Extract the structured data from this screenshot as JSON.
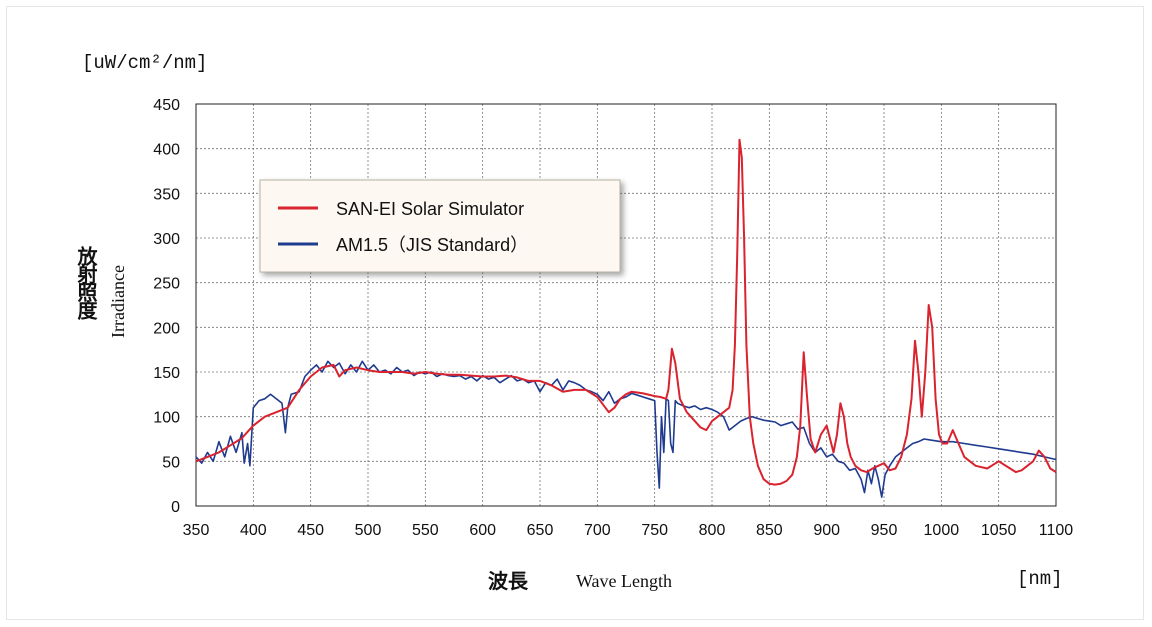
{
  "chart_data": {
    "type": "line",
    "y_unit_label": "[uW/cm²/nm]",
    "x_unit_label": "[nm]",
    "ylabel_jp": "放射照度",
    "ylabel_en": "Irradiance",
    "xlabel_jp": "波長",
    "xlabel_en": "Wave Length",
    "xlim": [
      350,
      1100
    ],
    "ylim": [
      0,
      450
    ],
    "x_ticks": [
      350,
      400,
      450,
      500,
      550,
      600,
      650,
      700,
      750,
      800,
      850,
      900,
      950,
      1000,
      1050,
      1100
    ],
    "y_ticks": [
      0,
      50,
      100,
      150,
      200,
      250,
      300,
      350,
      400,
      450
    ],
    "grid": true,
    "legend_position": "upper-left",
    "series": [
      {
        "name": "SAN-EI Solar Simulator",
        "color": "#d9232e",
        "x": [
          350,
          360,
          370,
          380,
          390,
          400,
          410,
          420,
          430,
          440,
          450,
          460,
          470,
          475,
          480,
          490,
          500,
          510,
          520,
          530,
          540,
          550,
          560,
          570,
          580,
          590,
          600,
          610,
          620,
          630,
          640,
          650,
          660,
          670,
          680,
          690,
          700,
          710,
          715,
          720,
          725,
          730,
          740,
          750,
          755,
          760,
          762,
          765,
          768,
          772,
          778,
          785,
          790,
          795,
          800,
          805,
          810,
          815,
          818,
          820,
          822,
          824,
          826,
          828,
          830,
          833,
          836,
          840,
          845,
          850,
          855,
          860,
          865,
          870,
          874,
          877,
          880,
          883,
          886,
          890,
          895,
          900,
          903,
          906,
          909,
          912,
          915,
          918,
          921,
          925,
          930,
          935,
          940,
          945,
          950,
          955,
          960,
          965,
          970,
          974,
          977,
          980,
          983,
          986,
          989,
          992,
          995,
          998,
          1001,
          1005,
          1010,
          1015,
          1020,
          1030,
          1040,
          1050,
          1055,
          1060,
          1065,
          1070,
          1080,
          1085,
          1090,
          1095,
          1100
        ],
        "values": [
          50,
          55,
          60,
          68,
          76,
          90,
          100,
          105,
          110,
          130,
          145,
          155,
          158,
          145,
          152,
          155,
          152,
          150,
          150,
          150,
          148,
          150,
          148,
          147,
          147,
          146,
          145,
          145,
          146,
          144,
          140,
          140,
          135,
          128,
          130,
          130,
          122,
          105,
          110,
          120,
          125,
          128,
          126,
          123,
          122,
          120,
          130,
          176,
          160,
          120,
          105,
          95,
          88,
          85,
          95,
          100,
          105,
          110,
          130,
          180,
          280,
          410,
          390,
          300,
          180,
          100,
          70,
          45,
          30,
          25,
          24,
          25,
          28,
          35,
          55,
          90,
          172,
          120,
          75,
          60,
          80,
          90,
          75,
          60,
          80,
          115,
          100,
          70,
          55,
          45,
          40,
          38,
          42,
          45,
          48,
          40,
          42,
          55,
          80,
          120,
          185,
          150,
          100,
          150,
          225,
          200,
          120,
          80,
          70,
          70,
          85,
          70,
          55,
          45,
          42,
          50,
          46,
          42,
          38,
          40,
          50,
          62,
          55,
          42,
          38
        ]
      },
      {
        "name": "AM1.5（JIS Standard）",
        "color": "#1f3b8f",
        "x": [
          350,
          355,
          360,
          365,
          370,
          375,
          380,
          385,
          390,
          392,
          395,
          397,
          400,
          405,
          410,
          415,
          420,
          425,
          428,
          430,
          433,
          440,
          445,
          450,
          455,
          460,
          465,
          470,
          475,
          480,
          485,
          490,
          495,
          500,
          505,
          510,
          515,
          520,
          525,
          530,
          535,
          540,
          545,
          550,
          555,
          560,
          565,
          570,
          575,
          580,
          585,
          590,
          595,
          600,
          605,
          610,
          615,
          620,
          625,
          630,
          635,
          640,
          645,
          650,
          655,
          660,
          665,
          670,
          675,
          680,
          685,
          690,
          695,
          700,
          705,
          710,
          715,
          720,
          725,
          730,
          735,
          740,
          745,
          750,
          752,
          754,
          756,
          758,
          760,
          762,
          764,
          766,
          768,
          770,
          775,
          780,
          785,
          790,
          795,
          800,
          805,
          810,
          815,
          820,
          825,
          830,
          835,
          840,
          845,
          850,
          855,
          860,
          865,
          870,
          875,
          880,
          885,
          890,
          895,
          900,
          905,
          910,
          915,
          920,
          925,
          930,
          933,
          936,
          939,
          942,
          945,
          948,
          951,
          955,
          960,
          965,
          970,
          975,
          980,
          985,
          990,
          995,
          1000,
          1010,
          1020,
          1030,
          1040,
          1050,
          1060,
          1070,
          1080,
          1090,
          1100
        ],
        "values": [
          55,
          48,
          60,
          50,
          72,
          55,
          78,
          60,
          82,
          48,
          70,
          45,
          110,
          118,
          120,
          125,
          120,
          115,
          82,
          110,
          125,
          128,
          145,
          152,
          158,
          150,
          162,
          155,
          160,
          148,
          158,
          150,
          162,
          152,
          158,
          150,
          152,
          148,
          155,
          150,
          152,
          146,
          150,
          148,
          150,
          145,
          148,
          146,
          145,
          146,
          142,
          145,
          140,
          146,
          142,
          144,
          138,
          142,
          146,
          140,
          142,
          138,
          140,
          128,
          138,
          135,
          142,
          130,
          140,
          138,
          135,
          130,
          128,
          125,
          118,
          128,
          115,
          120,
          122,
          126,
          124,
          122,
          120,
          118,
          60,
          20,
          100,
          60,
          120,
          118,
          70,
          60,
          118,
          115,
          112,
          110,
          112,
          108,
          110,
          108,
          105,
          100,
          85,
          90,
          95,
          98,
          100,
          98,
          96,
          95,
          94,
          90,
          92,
          94,
          86,
          88,
          70,
          60,
          65,
          55,
          58,
          50,
          48,
          40,
          42,
          30,
          15,
          40,
          25,
          45,
          30,
          10,
          35,
          45,
          55,
          60,
          65,
          70,
          72,
          75,
          74,
          73,
          72,
          72,
          70,
          68,
          66,
          64,
          62,
          60,
          58,
          55,
          52
        ]
      }
    ]
  }
}
